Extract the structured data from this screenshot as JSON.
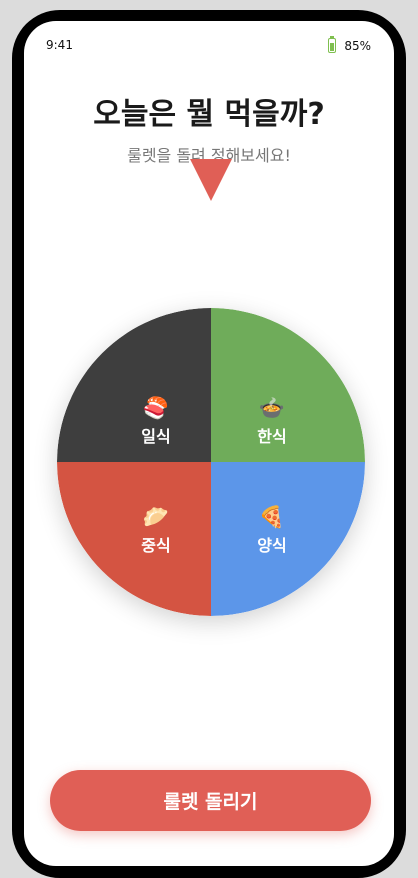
{
  "status": {
    "time": "9:41",
    "battery": "85%"
  },
  "header": {
    "title": "오늘은 뭘 먹을까?",
    "subtitle": "룰렛을 돌려 정해보세요!"
  },
  "wheel": {
    "slices": [
      {
        "label": "한식",
        "emoji": "🍲",
        "color": "#6fac5a"
      },
      {
        "label": "양식",
        "emoji": "🍕",
        "color": "#5c96e9"
      },
      {
        "label": "중식",
        "emoji": "🥟",
        "color": "#d45442"
      },
      {
        "label": "일식",
        "emoji": "🍣",
        "color": "#3e3e3e"
      }
    ]
  },
  "button": {
    "label": "룰렛 돌리기",
    "color": "#e05f56"
  }
}
